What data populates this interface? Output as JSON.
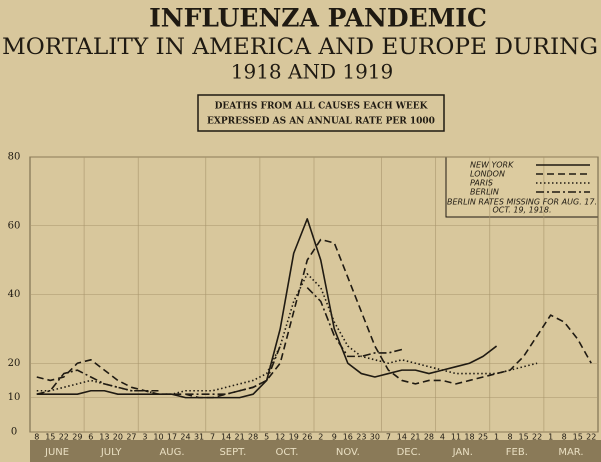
{
  "chart_data": {
    "type": "line",
    "title": "INFLUENZA PANDEMIC",
    "subtitle": [
      "MORTALITY IN AMERICA AND EUROPE DURING",
      "1918 AND 1919"
    ],
    "annotations": [
      "DEATHS FROM ALL CAUSES EACH WEEK",
      "EXPRESSED AS AN ANNUAL RATE PER 1000"
    ],
    "legend_note": [
      "BERLIN RATES MISSING FOR AUG. 17.",
      "OCT. 19, 1918."
    ],
    "months": [
      "JUNE",
      "JULY",
      "AUG.",
      "SEPT.",
      "OCT.",
      "NOV.",
      "DEC.",
      "JAN.",
      "FEB.",
      "MAR."
    ],
    "categories": [
      "8",
      "15",
      "22",
      "29",
      "6",
      "13",
      "20",
      "27",
      "3",
      "10",
      "17",
      "24",
      "31",
      "7",
      "14",
      "21",
      "28",
      "5",
      "12",
      "19",
      "26",
      "2",
      "9",
      "16",
      "23",
      "30",
      "7",
      "14",
      "21",
      "28",
      "4",
      "11",
      "18",
      "25",
      "1",
      "8",
      "15",
      "22",
      "1",
      "8",
      "15",
      "22"
    ],
    "series": [
      {
        "name": "NEW YORK",
        "color": "#1f1a12",
        "dash": "",
        "values": [
          11,
          11,
          11,
          11,
          12,
          12,
          11,
          11,
          11,
          11,
          11,
          10,
          10,
          10,
          10,
          10,
          11,
          15,
          30,
          52,
          62,
          50,
          30,
          20,
          17,
          16,
          17,
          18,
          18,
          17,
          18,
          19,
          20,
          22,
          25,
          null,
          null,
          null,
          null,
          null,
          null,
          null
        ]
      },
      {
        "name": "LONDON",
        "color": "#1f1a12",
        "dash": "7 4",
        "values": [
          16,
          15,
          16,
          20,
          21,
          18,
          15,
          13,
          12,
          11,
          11,
          11,
          10,
          10,
          11,
          12,
          13,
          15,
          20,
          35,
          50,
          56,
          55,
          45,
          35,
          25,
          18,
          15,
          14,
          15,
          15,
          14,
          15,
          16,
          17,
          18,
          22,
          28,
          34,
          32,
          27,
          20
        ]
      },
      {
        "name": "PARIS",
        "color": "#1f1a12",
        "dash": "1.5 2.5",
        "values": [
          12,
          12,
          13,
          14,
          15,
          14,
          13,
          12,
          12,
          11,
          11,
          12,
          12,
          12,
          13,
          14,
          15,
          17,
          25,
          38,
          46,
          42,
          32,
          25,
          22,
          21,
          20,
          21,
          20,
          19,
          18,
          17,
          17,
          17,
          17,
          18,
          19,
          20,
          null,
          null,
          null,
          null
        ]
      },
      {
        "name": "BERLIN",
        "color": "#1f1a12",
        "dash": "8 3 2 3",
        "values": [
          11,
          12,
          17,
          18,
          16,
          14,
          13,
          12,
          12,
          12,
          null,
          11,
          11,
          11,
          11,
          12,
          13,
          15,
          25,
          null,
          42,
          38,
          28,
          22,
          22,
          23,
          23,
          24,
          null,
          null,
          null,
          null,
          null,
          null,
          null,
          null,
          null,
          null,
          null,
          null,
          null,
          null
        ]
      }
    ],
    "ylim": [
      0,
      80
    ],
    "yticks": [
      0,
      10,
      20,
      40,
      60,
      80
    ],
    "grid": true
  }
}
